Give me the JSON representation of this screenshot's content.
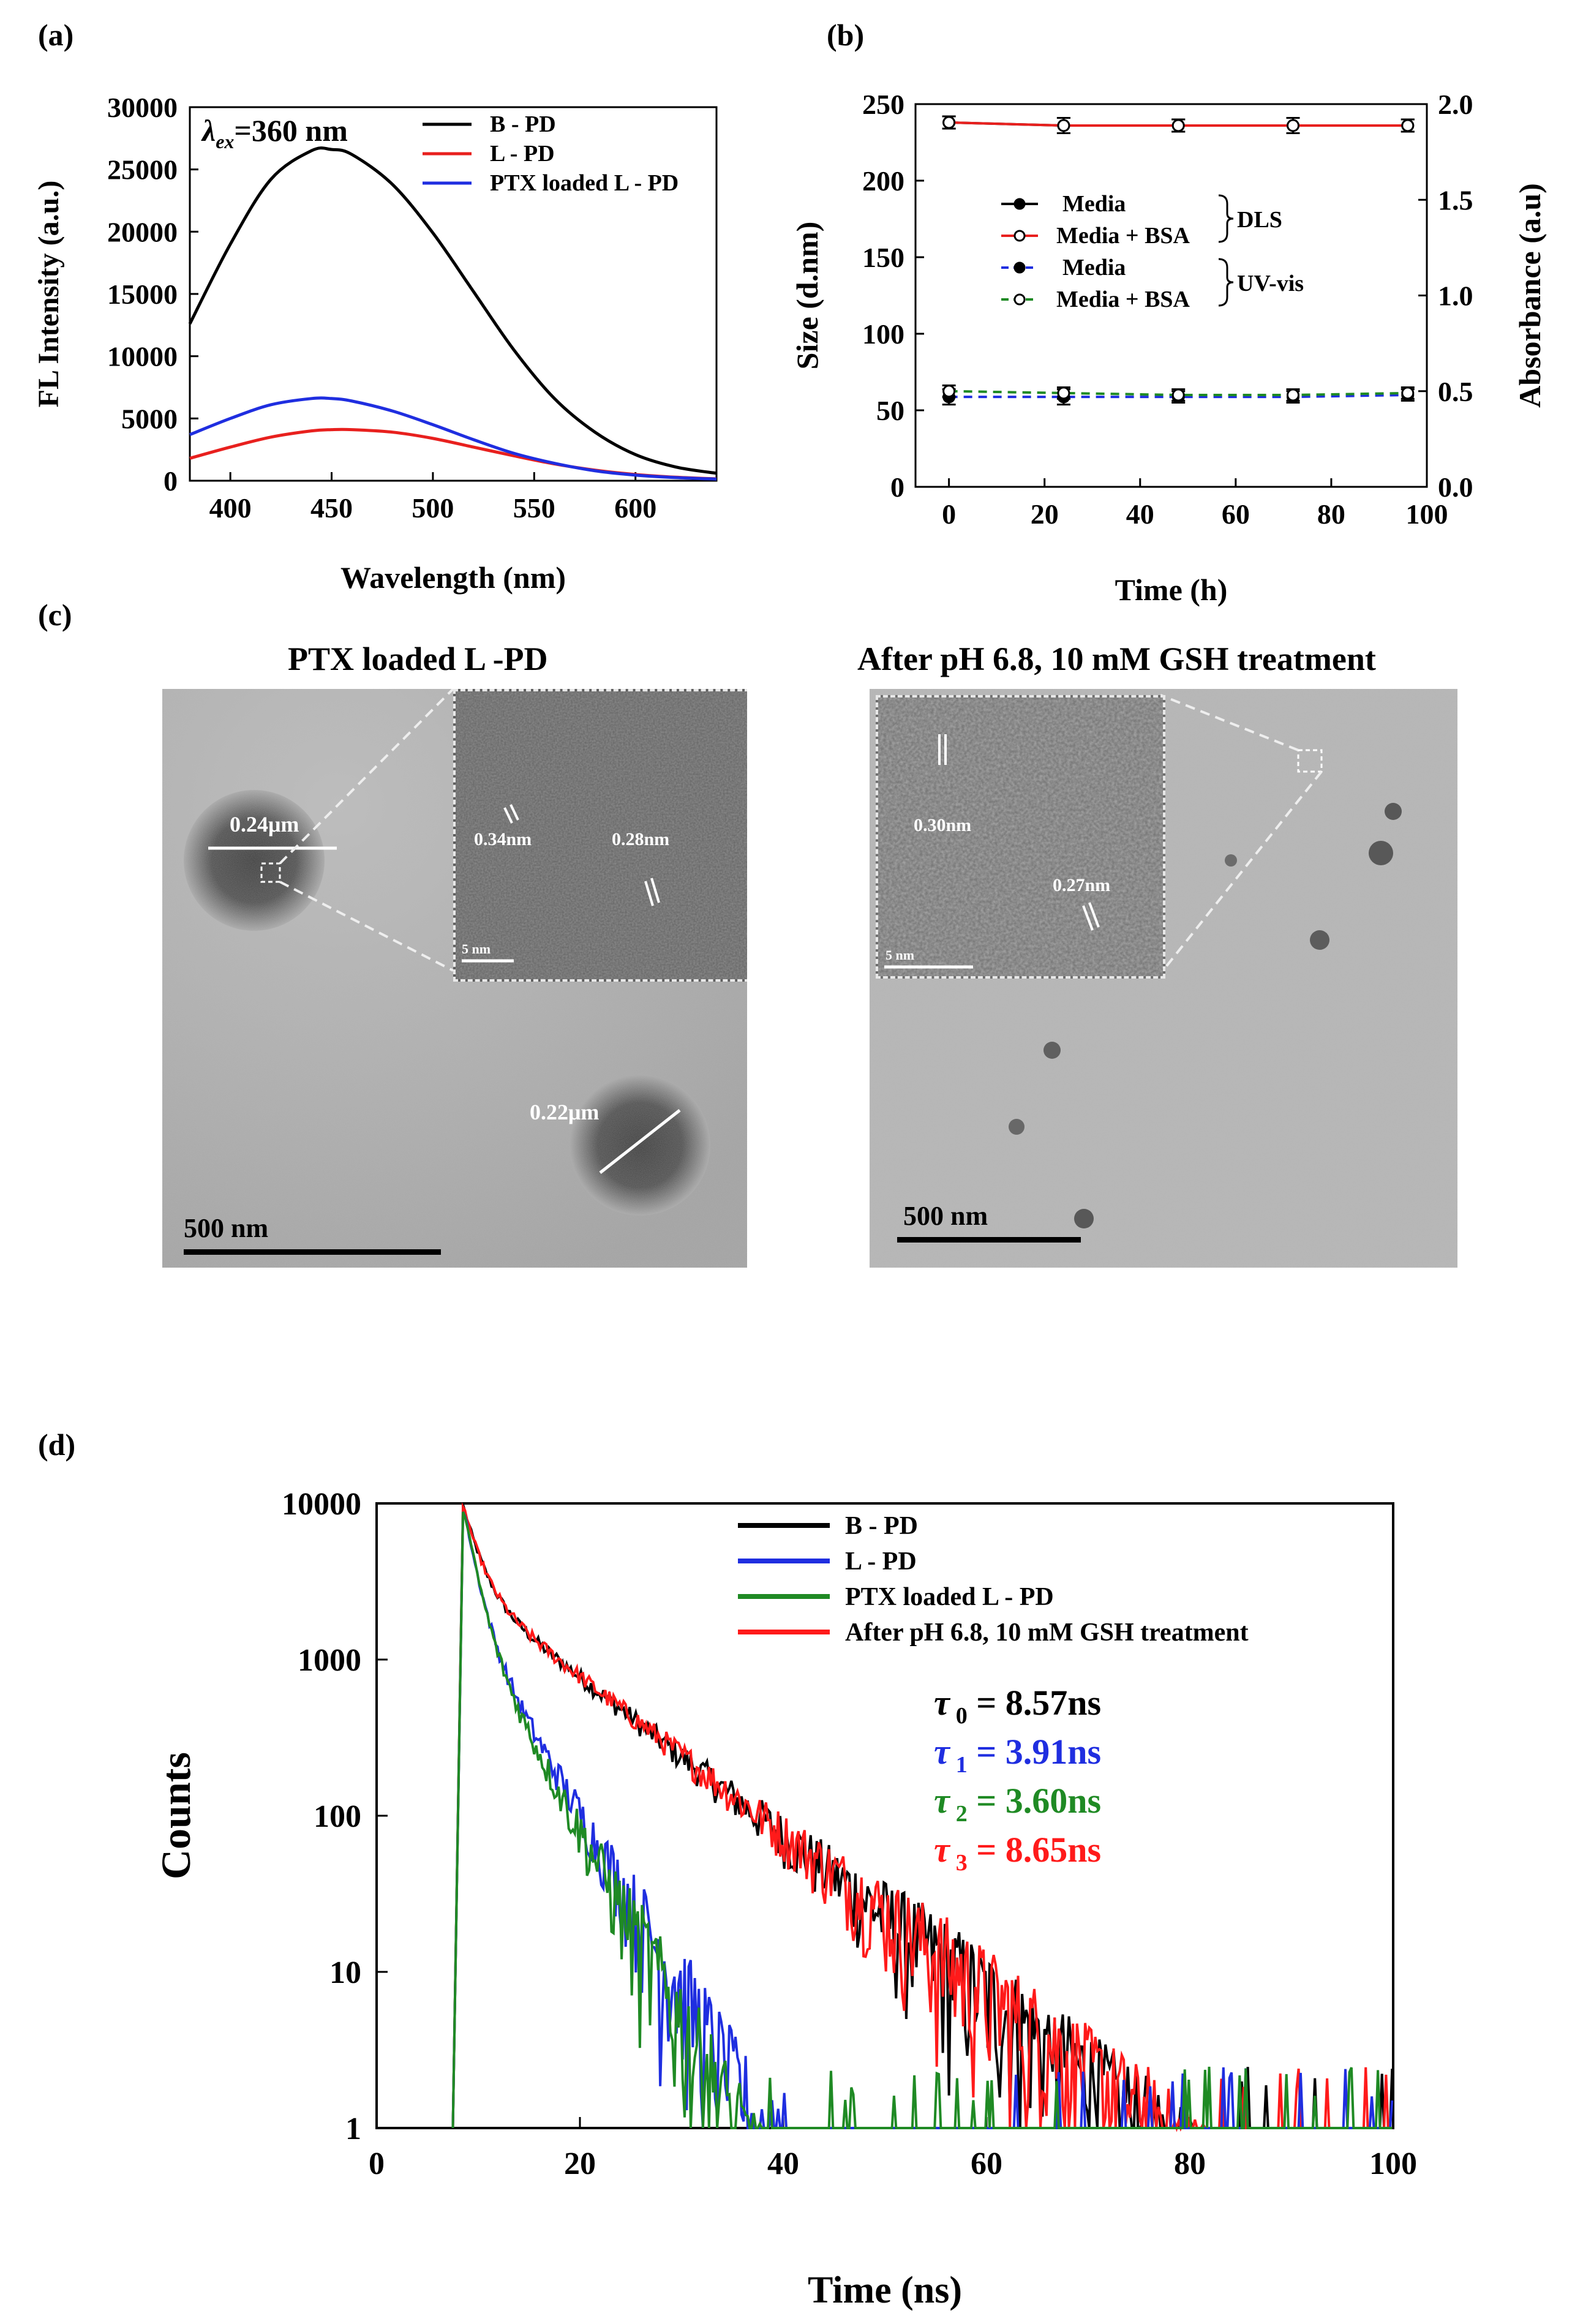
{
  "panels": {
    "a": "(a)",
    "b": "(b)",
    "c": "(c)",
    "d": "(d)"
  },
  "chart_data": [
    {
      "id": "a",
      "type": "line",
      "title": "",
      "xlabel": "Wavelength (nm)",
      "ylabel": "FL Intensity (a.u.)",
      "xlim": [
        380,
        640
      ],
      "ylim": [
        0,
        30000
      ],
      "xticks": [
        400,
        450,
        500,
        550,
        600
      ],
      "yticks": [
        0,
        5000,
        10000,
        15000,
        20000,
        25000,
        30000
      ],
      "annotation_prefix": "λ",
      "annotation_sub": "ex",
      "annotation_suffix": "=360 nm",
      "x": [
        380,
        400,
        420,
        440,
        450,
        460,
        480,
        500,
        520,
        540,
        560,
        580,
        600,
        620,
        640
      ],
      "series": [
        {
          "name": "B - PD",
          "color": "#000000",
          "values": [
            12600,
            19000,
            24200,
            26500,
            26600,
            26200,
            23800,
            19900,
            15200,
            10500,
            6600,
            3900,
            2100,
            1100,
            600
          ]
        },
        {
          "name": "L - PD",
          "color": "#e8201e",
          "values": [
            1800,
            2700,
            3500,
            4000,
            4100,
            4100,
            3900,
            3400,
            2700,
            2000,
            1350,
            850,
            500,
            280,
            150
          ]
        },
        {
          "name": "PTX loaded L - PD",
          "color": "#1f2ee0",
          "values": [
            3700,
            5000,
            6100,
            6600,
            6600,
            6400,
            5600,
            4500,
            3300,
            2200,
            1400,
            800,
            450,
            250,
            130
          ]
        }
      ]
    },
    {
      "id": "b",
      "type": "line",
      "xlabel": "Time (h)",
      "ylabel": "Size (d.nm)",
      "y2label": "Absorbance (a.u)",
      "xlim": [
        -7,
        100
      ],
      "ylim": [
        0,
        250
      ],
      "y2lim": [
        0,
        2.0
      ],
      "xticks": [
        0,
        20,
        40,
        60,
        80,
        100
      ],
      "yticks": [
        0,
        50,
        100,
        150,
        200,
        250
      ],
      "y2ticks": [
        "0.0",
        "0.5",
        "1.0",
        "1.5",
        "2.0"
      ],
      "x": [
        0,
        24,
        48,
        72,
        96
      ],
      "series": [
        {
          "name": "Media",
          "group": "DLS",
          "axis": "left",
          "color": "#000000",
          "style": "solid",
          "marker": "filled",
          "values": [
            238,
            236,
            236,
            236,
            236
          ],
          "errors": [
            4,
            5,
            4,
            5,
            4
          ]
        },
        {
          "name": "Media + BSA",
          "group": "DLS",
          "axis": "left",
          "color": "#e8201e",
          "style": "solid",
          "marker": "open",
          "values": [
            238,
            236,
            236,
            236,
            236
          ],
          "errors": [
            4,
            5,
            4,
            5,
            4
          ]
        },
        {
          "name": "Media",
          "group": "UV-vis",
          "axis": "right",
          "color": "#1f2ee0",
          "style": "dashed",
          "marker": "filled",
          "values": [
            0.47,
            0.47,
            0.47,
            0.47,
            0.48
          ],
          "errors": [
            0.04,
            0.04,
            0.03,
            0.03,
            0.03
          ]
        },
        {
          "name": "Media + BSA",
          "group": "UV-vis",
          "axis": "right",
          "color": "#1f8a24",
          "style": "dashed",
          "marker": "open",
          "values": [
            0.5,
            0.49,
            0.48,
            0.48,
            0.49
          ],
          "errors": [
            0.03,
            0.03,
            0.03,
            0.03,
            0.03
          ]
        }
      ],
      "bracket_labels": [
        "DLS",
        "UV-vis"
      ]
    },
    {
      "id": "d",
      "type": "line",
      "scale": "log",
      "xlabel": "Time (ns)",
      "ylabel": "Counts",
      "xlim": [
        0,
        100
      ],
      "ylim": [
        1,
        10000
      ],
      "xticks": [
        0,
        20,
        40,
        60,
        80,
        100
      ],
      "yticks": [
        "1",
        "10",
        "100",
        "1000",
        "10000"
      ],
      "rise_ns": 7.5,
      "peak_ns": 8.5,
      "series": [
        {
          "name": "B - PD",
          "color": "#000000",
          "tau_label": "τ",
          "tau_sub": "0",
          "tau_value": " = 8.57ns",
          "tau_ns": 8.57
        },
        {
          "name": "L - PD",
          "color": "#1f2ee0",
          "tau_label": "τ",
          "tau_sub": "1",
          "tau_value": " = 3.91ns",
          "tau_ns": 3.91
        },
        {
          "name": "PTX loaded L - PD",
          "color": "#1f8a24",
          "tau_label": "τ",
          "tau_sub": "2",
          "tau_value": " = 3.60ns",
          "tau_ns": 3.6
        },
        {
          "name": "After pH 6.8, 10 mM GSH treatment",
          "color": "#ff1a1a",
          "tau_label": "τ",
          "tau_sub": "3",
          "tau_value": " = 8.65ns",
          "tau_ns": 8.65
        }
      ]
    }
  ],
  "tem": {
    "left": {
      "title": "PTX loaded L -PD",
      "scale_bar": "500 nm",
      "inset_scale": "5 nm",
      "particle_sizes": [
        "0.24μm",
        "0.22μm"
      ],
      "lattice": [
        "0.34nm",
        "0.28nm"
      ]
    },
    "right": {
      "title": "After pH 6.8, 10 mM GSH treatment",
      "scale_bar": "500 nm",
      "inset_scale": "5 nm",
      "lattice": [
        "0.30nm",
        "0.27nm"
      ]
    }
  }
}
